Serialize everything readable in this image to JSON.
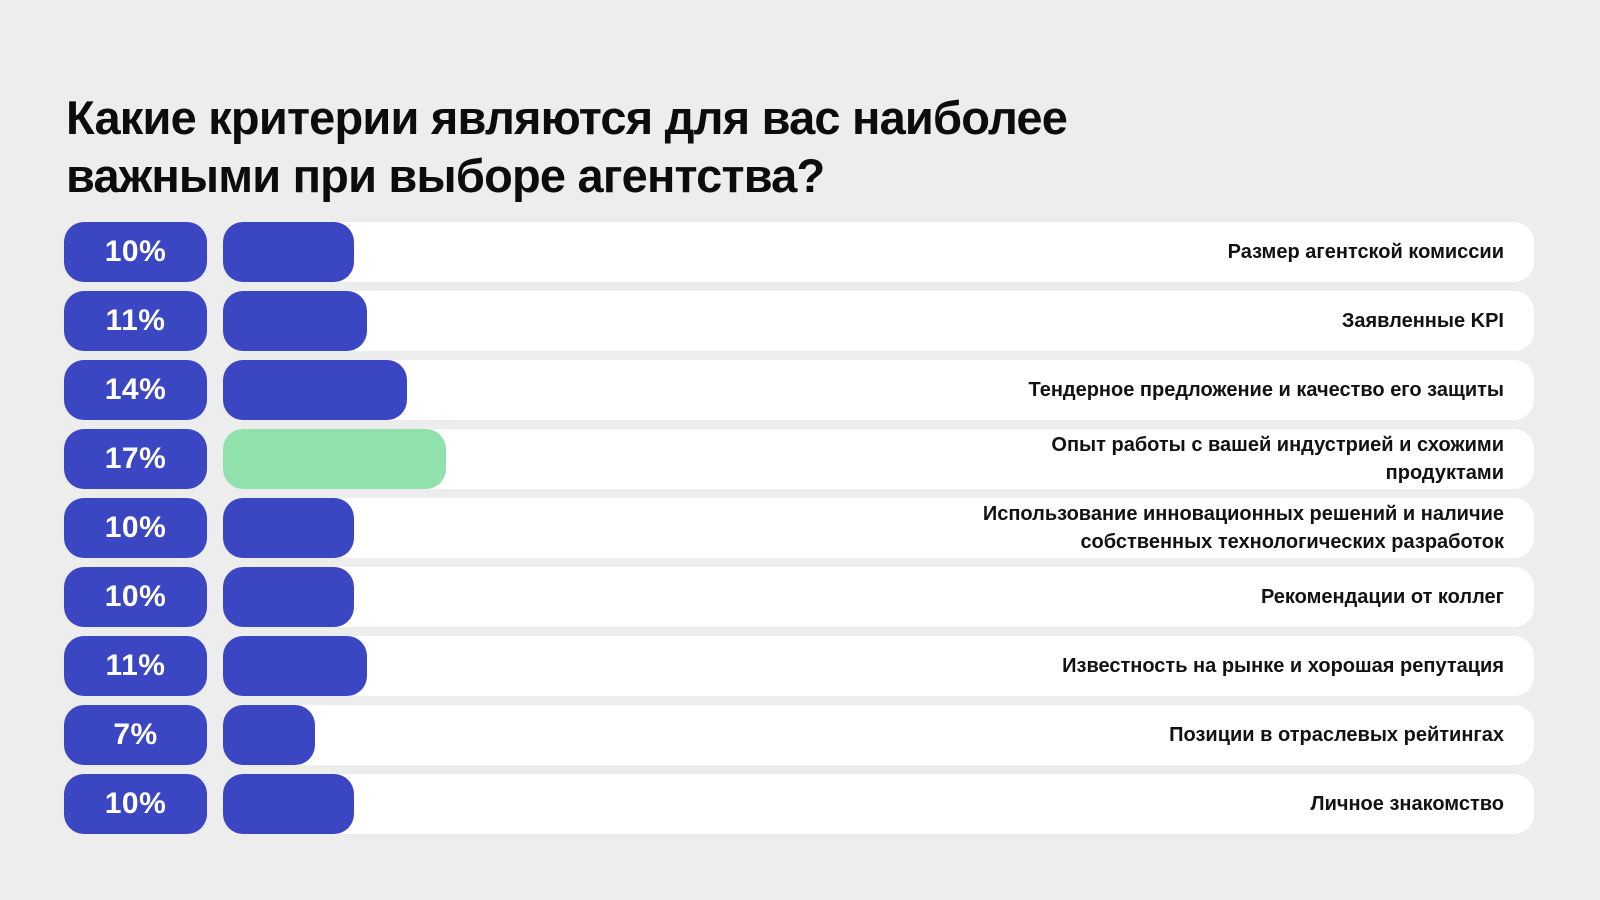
{
  "title": {
    "full": "Какие критерии являются для вас наиболее важными при выборе агентства?",
    "line1": "Какие критерии являются для вас наиболее",
    "line2": "важными при выборе агентства?"
  },
  "colors": {
    "background": "#ededed",
    "track": "#ffffff",
    "bar_primary": "#3b46c3",
    "bar_highlight": "#90e1ac",
    "badge_background": "#3b46c3",
    "badge_text": "#ffffff",
    "label_text": "#121212",
    "title_text": "#0c0c0c"
  },
  "rows": [
    {
      "pct_label": "10%",
      "value": 10,
      "label": "Размер агентской комиссии",
      "highlight": false
    },
    {
      "pct_label": "11%",
      "value": 11,
      "label": "Заявленные KPI",
      "highlight": false
    },
    {
      "pct_label": "14%",
      "value": 14,
      "label": "Тендерное предложение и качество его защиты",
      "highlight": false
    },
    {
      "pct_label": "17%",
      "value": 17,
      "label": "Опыт работы с вашей индустрией и схожими продуктами",
      "highlight": true
    },
    {
      "pct_label": "10%",
      "value": 10,
      "label": "Использование инновационных решений и наличие собственных технологических разработок",
      "highlight": false
    },
    {
      "pct_label": "10%",
      "value": 10,
      "label": "Рекомендации от коллег",
      "highlight": false
    },
    {
      "pct_label": "11%",
      "value": 11,
      "label": "Известность на рынке и хорошая репутация",
      "highlight": false
    },
    {
      "pct_label": "7%",
      "value": 7,
      "label": "Позиции в отраслевых рейтингах",
      "highlight": false
    },
    {
      "pct_label": "10%",
      "value": 10,
      "label": "Личное знакомство",
      "highlight": false
    }
  ],
  "chart_data": {
    "type": "bar",
    "orientation": "horizontal",
    "title": "Какие критерии являются для вас наиболее важными при выборе агентства?",
    "categories": [
      "Размер агентской комиссии",
      "Заявленные KPI",
      "Тендерное предложение и качество его защиты",
      "Опыт работы с вашей индустрией и схожими продуктами",
      "Использование инновационных решений и наличие собственных технологических разработок",
      "Рекомендации от коллег",
      "Известность на рынке и хорошая репутация",
      "Позиции в отраслевых рейтингах",
      "Личное знакомство"
    ],
    "values": [
      10,
      11,
      14,
      17,
      10,
      10,
      11,
      7,
      10
    ],
    "unit": "%",
    "xlim": [
      0,
      100
    ],
    "highlight_category": "Опыт работы с вашей индустрией и схожими продуктами",
    "legend": "none",
    "grid": "off"
  }
}
